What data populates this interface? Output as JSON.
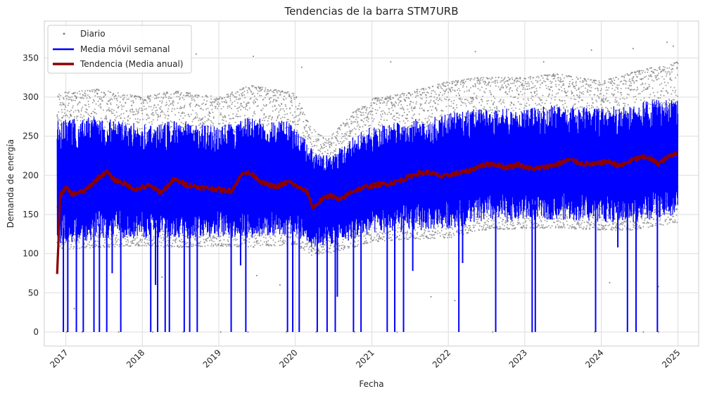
{
  "chart_data": {
    "type": "line",
    "title": "Tendencias de la barra STM7URB",
    "xlabel": "Fecha",
    "ylabel": "Demanda de energía",
    "xlim": [
      "2016-09-20",
      "2025-04-10"
    ],
    "ylim": [
      -18,
      397
    ],
    "x_ticks": [
      "2017",
      "2018",
      "2019",
      "2020",
      "2021",
      "2022",
      "2023",
      "2024",
      "2025"
    ],
    "y_ticks": [
      0,
      50,
      100,
      150,
      200,
      250,
      300,
      350
    ],
    "grid": true,
    "legend_position": "top-left",
    "series": [
      {
        "name": "Diario",
        "kind": "scatter",
        "color": "#808080",
        "band_low": [
          [
            "2016-11-20",
            105
          ],
          [
            "2017-06-01",
            108
          ],
          [
            "2018-01-01",
            110
          ],
          [
            "2018-06-01",
            108
          ],
          [
            "2019-01-01",
            110
          ],
          [
            "2019-06-01",
            108
          ],
          [
            "2020-01-01",
            112
          ],
          [
            "2020-03-15",
            98
          ],
          [
            "2020-06-01",
            100
          ],
          [
            "2020-10-01",
            108
          ],
          [
            "2021-01-01",
            115
          ],
          [
            "2021-06-01",
            118
          ],
          [
            "2022-01-01",
            120
          ],
          [
            "2022-06-01",
            130
          ],
          [
            "2023-01-01",
            132
          ],
          [
            "2023-06-01",
            133
          ],
          [
            "2024-01-01",
            130
          ],
          [
            "2024-06-01",
            130
          ],
          [
            "2025-01-01",
            140
          ]
        ],
        "band_high": [
          [
            "2016-11-20",
            305
          ],
          [
            "2017-06-01",
            310
          ],
          [
            "2018-01-01",
            300
          ],
          [
            "2018-06-01",
            308
          ],
          [
            "2019-01-01",
            300
          ],
          [
            "2019-06-01",
            315
          ],
          [
            "2020-01-01",
            305
          ],
          [
            "2020-03-15",
            262
          ],
          [
            "2020-06-01",
            245
          ],
          [
            "2020-10-01",
            280
          ],
          [
            "2021-01-01",
            298
          ],
          [
            "2021-06-01",
            305
          ],
          [
            "2022-01-01",
            320
          ],
          [
            "2022-06-01",
            325
          ],
          [
            "2023-01-01",
            325
          ],
          [
            "2023-06-01",
            330
          ],
          [
            "2024-01-01",
            320
          ],
          [
            "2024-06-01",
            332
          ],
          [
            "2025-01-01",
            345
          ]
        ],
        "outliers": [
          [
            "2017-01-05",
            0
          ],
          [
            "2017-03-20",
            0
          ],
          [
            "2017-09-10",
            0
          ],
          [
            "2018-02-20",
            0
          ],
          [
            "2018-07-15",
            0
          ],
          [
            "2019-01-10",
            0
          ],
          [
            "2019-05-20",
            0
          ],
          [
            "2019-11-20",
            0
          ],
          [
            "2020-04-10",
            0
          ],
          [
            "2020-10-10",
            0
          ],
          [
            "2021-05-01",
            0
          ],
          [
            "2022-08-01",
            0
          ],
          [
            "2023-02-05",
            0
          ],
          [
            "2023-12-01",
            0
          ],
          [
            "2024-07-20",
            0
          ],
          [
            "2024-10-01",
            0
          ],
          [
            "2017-02-10",
            30
          ],
          [
            "2018-04-05",
            70
          ],
          [
            "2019-07-01",
            72
          ],
          [
            "2019-10-20",
            60
          ],
          [
            "2021-10-10",
            45
          ],
          [
            "2022-02-01",
            40
          ],
          [
            "2024-02-10",
            63
          ],
          [
            "2024-09-30",
            58
          ],
          [
            "2017-08-01",
            377
          ],
          [
            "2018-09-15",
            355
          ],
          [
            "2019-06-15",
            352
          ],
          [
            "2021-04-01",
            345
          ],
          [
            "2022-05-10",
            358
          ],
          [
            "2023-11-15",
            360
          ],
          [
            "2024-06-01",
            362
          ],
          [
            "2024-11-10",
            370
          ],
          [
            "2024-12-10",
            365
          ],
          [
            "2023-04-01",
            345
          ],
          [
            "2020-02-01",
            338
          ]
        ]
      },
      {
        "name": "Media móvil semanal",
        "kind": "line",
        "color": "#0000ff",
        "band_low": [
          [
            "2016-11-20",
            112
          ],
          [
            "2017-06-01",
            118
          ],
          [
            "2018-01-01",
            120
          ],
          [
            "2018-06-01",
            118
          ],
          [
            "2019-01-01",
            122
          ],
          [
            "2019-06-01",
            120
          ],
          [
            "2020-01-01",
            125
          ],
          [
            "2020-03-15",
            108
          ],
          [
            "2020-06-01",
            110
          ],
          [
            "2020-10-01",
            118
          ],
          [
            "2021-01-01",
            125
          ],
          [
            "2021-06-01",
            128
          ],
          [
            "2022-01-01",
            132
          ],
          [
            "2022-06-01",
            140
          ],
          [
            "2023-01-01",
            142
          ],
          [
            "2023-06-01",
            144
          ],
          [
            "2024-01-01",
            140
          ],
          [
            "2024-06-01",
            140
          ],
          [
            "2025-01-01",
            150
          ]
        ],
        "band_high": [
          [
            "2016-11-20",
            270
          ],
          [
            "2017-06-01",
            275
          ],
          [
            "2018-01-01",
            265
          ],
          [
            "2018-06-01",
            270
          ],
          [
            "2019-01-01",
            262
          ],
          [
            "2019-06-01",
            275
          ],
          [
            "2020-01-01",
            268
          ],
          [
            "2020-03-15",
            235
          ],
          [
            "2020-06-01",
            225
          ],
          [
            "2020-10-01",
            250
          ],
          [
            "2021-01-01",
            262
          ],
          [
            "2021-06-01",
            268
          ],
          [
            "2022-01-01",
            280
          ],
          [
            "2022-06-01",
            285
          ],
          [
            "2023-01-01",
            285
          ],
          [
            "2023-06-01",
            290
          ],
          [
            "2024-01-01",
            285
          ],
          [
            "2024-06-01",
            292
          ],
          [
            "2025-01-01",
            300
          ]
        ],
        "drops_to_zero": [
          "2016-12-20",
          "2017-01-10",
          "2017-02-20",
          "2017-03-25",
          "2017-05-15",
          "2017-06-10",
          "2017-07-15",
          "2017-09-20",
          "2018-02-10",
          "2018-03-15",
          "2018-04-20",
          "2018-05-10",
          "2018-07-20",
          "2018-08-15",
          "2018-09-20",
          "2019-03-01",
          "2019-05-10",
          "2019-11-25",
          "2019-12-20",
          "2020-01-20",
          "2020-04-15",
          "2020-06-01",
          "2020-07-10",
          "2020-10-05",
          "2020-11-10",
          "2021-03-15",
          "2021-04-20",
          "2021-06-01",
          "2022-02-20",
          "2022-08-15",
          "2023-02-05",
          "2023-02-20",
          "2023-12-05",
          "2024-05-05",
          "2024-06-15",
          "2024-09-25"
        ],
        "partial_drops": [
          [
            "2017-08-10",
            75
          ],
          [
            "2018-03-05",
            60
          ],
          [
            "2019-04-15",
            85
          ],
          [
            "2020-07-20",
            45
          ],
          [
            "2021-07-15",
            78
          ],
          [
            "2022-03-10",
            88
          ],
          [
            "2024-03-20",
            108
          ]
        ]
      },
      {
        "name": "Tendencia (Media anual)",
        "kind": "line",
        "color": "#8b0000",
        "points": [
          [
            "2016-11-20",
            72
          ],
          [
            "2016-12-05",
            175
          ],
          [
            "2017-01-01",
            184
          ],
          [
            "2017-02-01",
            176
          ],
          [
            "2017-04-01",
            180
          ],
          [
            "2017-06-01",
            196
          ],
          [
            "2017-07-15",
            205
          ],
          [
            "2017-08-15",
            195
          ],
          [
            "2017-10-01",
            190
          ],
          [
            "2017-12-01",
            182
          ],
          [
            "2018-02-01",
            187
          ],
          [
            "2018-04-01",
            178
          ],
          [
            "2018-06-01",
            195
          ],
          [
            "2018-08-01",
            188
          ],
          [
            "2018-10-01",
            185
          ],
          [
            "2019-01-01",
            182
          ],
          [
            "2019-03-01",
            180
          ],
          [
            "2019-05-01",
            205
          ],
          [
            "2019-06-15",
            200
          ],
          [
            "2019-08-01",
            190
          ],
          [
            "2019-10-01",
            185
          ],
          [
            "2019-12-01",
            192
          ],
          [
            "2020-01-15",
            185
          ],
          [
            "2020-03-01",
            178
          ],
          [
            "2020-03-25",
            158
          ],
          [
            "2020-05-01",
            168
          ],
          [
            "2020-06-15",
            175
          ],
          [
            "2020-08-01",
            168
          ],
          [
            "2020-10-01",
            180
          ],
          [
            "2020-12-01",
            185
          ],
          [
            "2021-02-01",
            188
          ],
          [
            "2021-04-01",
            190
          ],
          [
            "2021-06-01",
            195
          ],
          [
            "2021-08-01",
            202
          ],
          [
            "2021-10-01",
            204
          ],
          [
            "2021-12-01",
            198
          ],
          [
            "2022-02-01",
            202
          ],
          [
            "2022-04-01",
            205
          ],
          [
            "2022-06-01",
            212
          ],
          [
            "2022-08-01",
            215
          ],
          [
            "2022-10-01",
            210
          ],
          [
            "2022-12-01",
            214
          ],
          [
            "2023-02-01",
            208
          ],
          [
            "2023-04-01",
            210
          ],
          [
            "2023-06-01",
            214
          ],
          [
            "2023-08-01",
            220
          ],
          [
            "2023-10-01",
            215
          ],
          [
            "2023-12-01",
            214
          ],
          [
            "2024-02-01",
            218
          ],
          [
            "2024-04-01",
            212
          ],
          [
            "2024-06-01",
            220
          ],
          [
            "2024-08-01",
            224
          ],
          [
            "2024-10-01",
            215
          ],
          [
            "2024-12-01",
            226
          ],
          [
            "2024-12-31",
            229
          ]
        ]
      }
    ]
  }
}
